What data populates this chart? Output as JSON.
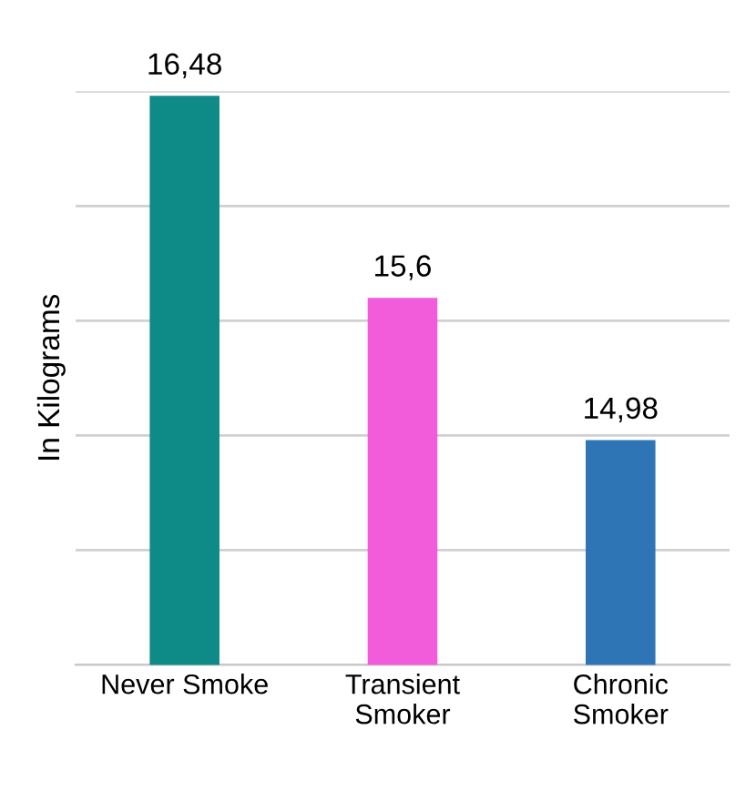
{
  "chart_data": {
    "type": "bar",
    "ylabel": "In Kilograms",
    "categories": [
      "Never Smoke",
      "Transient\nSmoker",
      "Chronic\nSmoker"
    ],
    "values": [
      16.48,
      15.6,
      14.98
    ],
    "colors": [
      "#0e8a87",
      "#f25bd9",
      "#2e75b6"
    ],
    "value_labels": [
      "16,48",
      "15,6",
      "14,98"
    ],
    "ylim": [
      14,
      16.5
    ],
    "yticks": [
      {
        "value": 14,
        "label": null
      },
      {
        "value": 14.5,
        "label": null
      },
      {
        "value": 15,
        "label": null
      },
      {
        "value": 15.5,
        "label": null
      },
      {
        "value": 16,
        "label": null
      },
      {
        "value": 16.5,
        "label": null
      }
    ],
    "grid": "y",
    "tick_labels": "x"
  }
}
